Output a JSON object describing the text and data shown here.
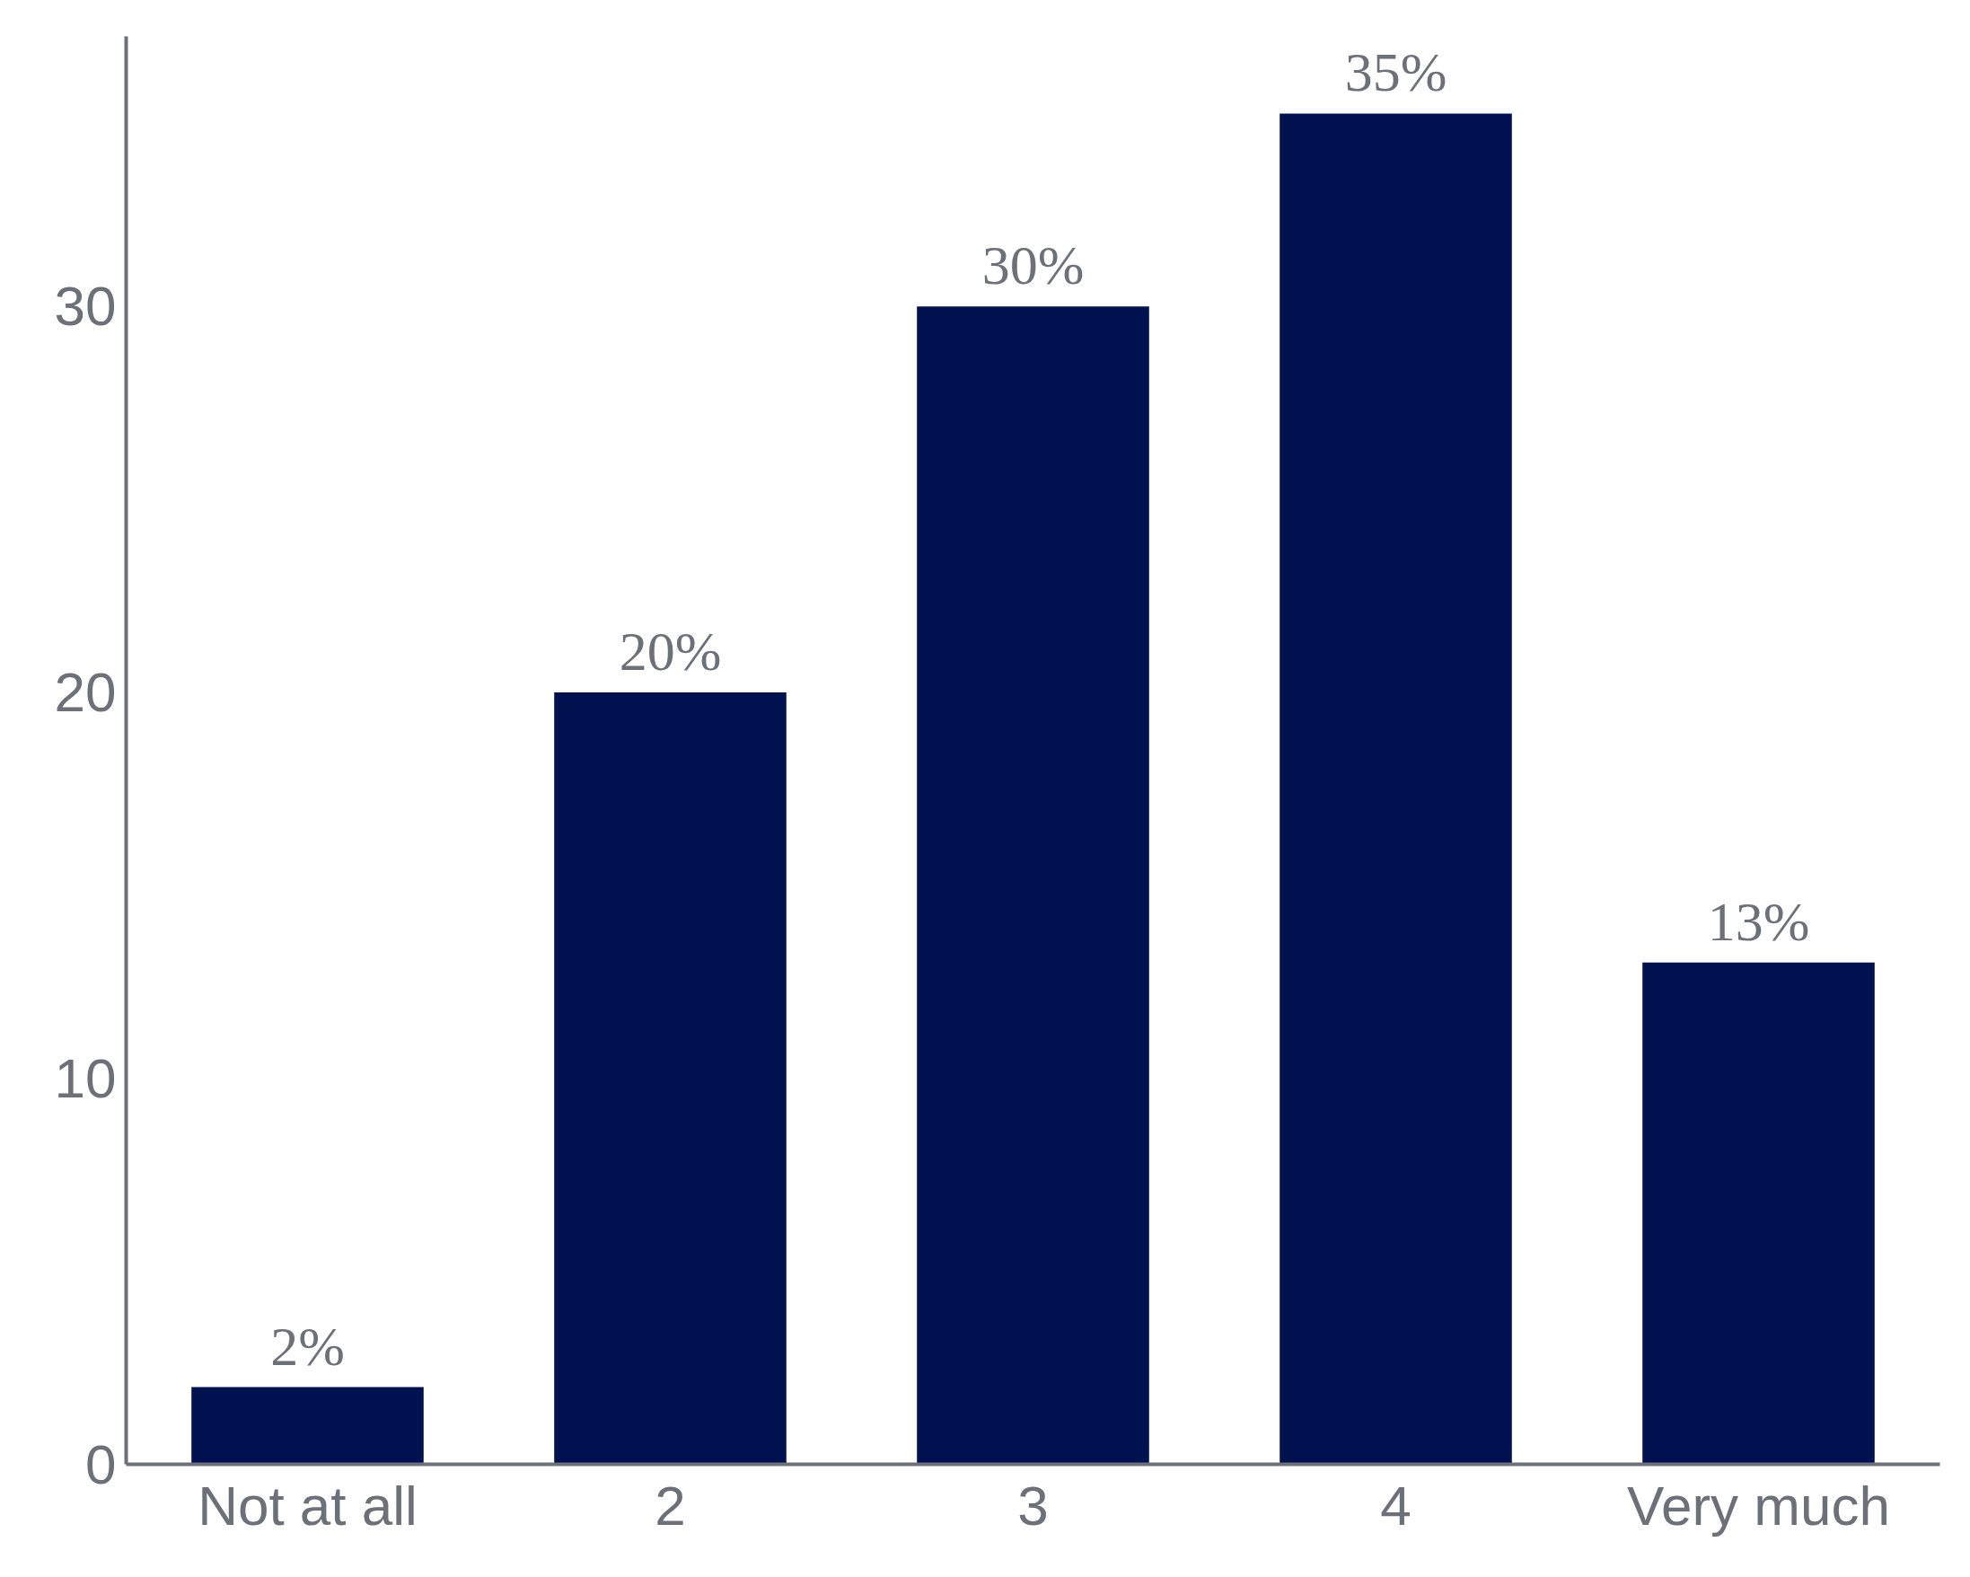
{
  "chart_data": {
    "type": "bar",
    "categories": [
      "Not at all",
      "2",
      "3",
      "4",
      "Very much"
    ],
    "values": [
      2,
      20,
      30,
      35,
      13
    ],
    "value_labels": [
      "2%",
      "20%",
      "30%",
      "35%",
      "13%"
    ],
    "color": "#00114f",
    "ylim": [
      0,
      37
    ],
    "yticks": [
      0,
      10,
      20,
      30
    ],
    "grid": false
  }
}
